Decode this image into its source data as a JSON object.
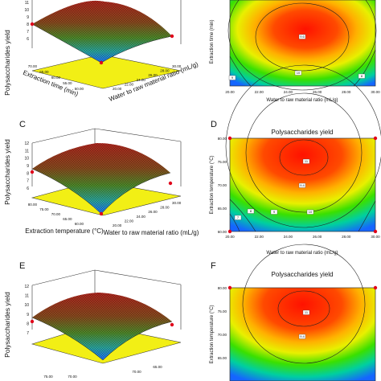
{
  "panels": [
    {
      "letter": "",
      "kind": "surface",
      "zlabel": "Polysaccharides yield",
      "xlabel": "Extraction time (min)",
      "ylabel": "Water to raw material ratio (mL/g)",
      "zticks": [
        "11",
        "10",
        "9",
        "8",
        "7",
        "6"
      ],
      "xticks": [
        "70.00",
        "65.00",
        "60.00",
        "55.00",
        "50.00"
      ],
      "yticks": [
        "30.00",
        "28.00",
        "26.00",
        "24.00",
        "22.00",
        "20.00"
      ]
    },
    {
      "letter": "",
      "kind": "contour",
      "title": "",
      "xlabel": "Water to raw material ratio (mL/g)",
      "ylabel": "Extraction time (min)",
      "xticks": [
        "20.00",
        "22.00",
        "24.00",
        "26.00",
        "28.00",
        "30.00"
      ],
      "yticks": [],
      "contour_labels": [
        "9.6",
        "10",
        "9",
        "8"
      ]
    },
    {
      "letter": "C",
      "kind": "surface",
      "zlabel": "Polysaccharides yield",
      "xlabel": "Extraction temperature (°C)",
      "ylabel": "Water to raw material ratio (mL/g)",
      "zticks": [
        "12",
        "11",
        "10",
        "9",
        "8",
        "7",
        "6"
      ],
      "xticks": [
        "80.00",
        "75.00",
        "70.00",
        "65.00",
        "60.00"
      ],
      "yticks": [
        "30.00",
        "28.00",
        "26.00",
        "24.00",
        "22.00",
        "20.00"
      ]
    },
    {
      "letter": "D",
      "kind": "contour",
      "title": "Polysaccharides yield",
      "xlabel": "Water to raw material ratio (mL/g)",
      "ylabel": "Extraction temperature (°C)",
      "xticks": [
        "20.00",
        "22.00",
        "24.00",
        "26.00",
        "28.00",
        "30.00"
      ],
      "yticks": [
        "80.00",
        "75.00",
        "70.00",
        "65.00",
        "60.00"
      ],
      "contour_labels": [
        "11",
        "9.4",
        "10",
        "9",
        "8",
        "7"
      ]
    },
    {
      "letter": "E",
      "kind": "surface",
      "zlabel": "Polysaccharides yield",
      "xlabel": "",
      "ylabel": "",
      "zticks": [
        "12",
        "11",
        "10",
        "9",
        "8",
        "7"
      ],
      "xticks": [
        "75.00",
        "70.00"
      ],
      "yticks": [
        "70.00",
        "65.00"
      ]
    },
    {
      "letter": "F",
      "kind": "contour",
      "title": "Polysaccharides yield",
      "xlabel": "",
      "ylabel": "Extraction temperature (°C)",
      "xticks": [],
      "yticks": [
        "80.00",
        "75.00",
        "70.00",
        "65.00"
      ],
      "contour_labels": [
        "11",
        "9.4"
      ]
    }
  ],
  "chart_data": [
    {
      "type": "surface",
      "xlabel": "Extraction time (min)",
      "ylabel": "Water to raw material ratio (mL/g)",
      "zlabel": "Polysaccharides yield",
      "x_range": [
        50,
        70
      ],
      "y_range": [
        20,
        30
      ],
      "z_range": [
        6,
        11
      ],
      "peak": {
        "x": 60,
        "y": 25,
        "z": 10.6
      },
      "corner_min": {
        "x": 50,
        "y": 20,
        "z": 6.1
      }
    },
    {
      "type": "heatmap",
      "xlabel": "Water to raw material ratio (mL/g)",
      "ylabel": "Extraction time (min)",
      "x_range": [
        20,
        30
      ],
      "center": {
        "x": 25,
        "z": 10.6
      },
      "contour_levels": [
        8,
        9,
        9.6,
        10
      ]
    },
    {
      "type": "surface",
      "xlabel": "Extraction temperature (°C)",
      "ylabel": "Water to raw material ratio (mL/g)",
      "zlabel": "Polysaccharides yield",
      "x_range": [
        60,
        80
      ],
      "y_range": [
        20,
        30
      ],
      "z_range": [
        6,
        12
      ],
      "peak": {
        "x": 75,
        "y": 25,
        "z": 10.9
      },
      "corner_min": {
        "x": 60,
        "y": 20,
        "z": 6.3
      }
    },
    {
      "type": "heatmap",
      "title": "Polysaccharides yield",
      "xlabel": "Water to raw material ratio (mL/g)",
      "ylabel": "Extraction temperature (°C)",
      "x_range": [
        20,
        30
      ],
      "y_range": [
        60,
        80
      ],
      "center": {
        "x": 25,
        "y": 75,
        "z": 11
      },
      "contour_levels": [
        7,
        8,
        9,
        9.4,
        10,
        11
      ]
    },
    {
      "type": "surface",
      "zlabel": "Polysaccharides yield",
      "z_range": [
        7,
        12
      ],
      "peak_z": 10.9
    },
    {
      "type": "heatmap",
      "title": "Polysaccharides yield",
      "ylabel": "Extraction temperature (°C)",
      "y_range": [
        65,
        80
      ],
      "contour_levels": [
        9.4,
        11
      ]
    }
  ],
  "colors": {
    "floor": "#f2ef15",
    "surface_high": "#c0392b",
    "surface_mid": "#6b8e23",
    "surface_low": "#1e90ff",
    "contour_red": "#ff1a00",
    "contour_green": "#11d100",
    "contour_blue": "#1565ff",
    "point": "#e0001a"
  }
}
